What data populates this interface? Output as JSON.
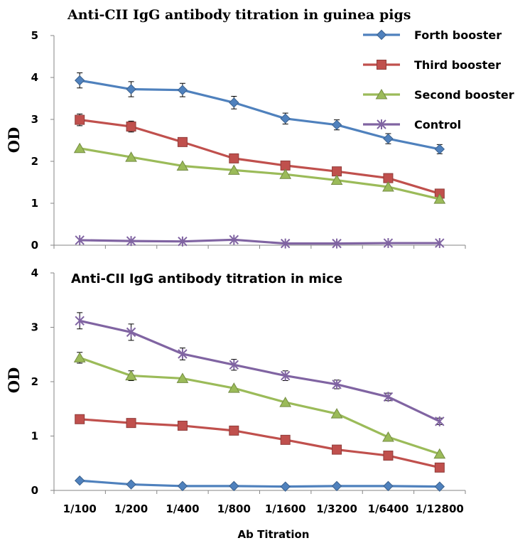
{
  "chart_data": [
    {
      "type": "line",
      "title": "Anti-CII IgG antibody titration in guinea pigs",
      "ylabel": "OD",
      "xlabel": "",
      "ylim": [
        0,
        5
      ],
      "yticks": [
        0,
        1,
        2,
        3,
        4,
        5
      ],
      "categories": [
        "1/100",
        "1/200",
        "1/400",
        "1/800",
        "1/1600",
        "1/3200",
        "1/6400",
        "1/12800"
      ],
      "legend": "top-right",
      "series": [
        {
          "name": "Forth booster",
          "color": "#4F81BD",
          "marker": "diamond",
          "values": [
            3.93,
            3.72,
            3.7,
            3.4,
            3.02,
            2.87,
            2.54,
            2.29
          ],
          "errors": [
            0.18,
            0.18,
            0.16,
            0.15,
            0.13,
            0.12,
            0.12,
            0.11
          ]
        },
        {
          "name": "Third booster",
          "color": "#C0504D",
          "marker": "square",
          "values": [
            2.99,
            2.83,
            2.46,
            2.07,
            1.9,
            1.76,
            1.6,
            1.23
          ],
          "errors": [
            0.14,
            0.13,
            0.0,
            0.0,
            0.0,
            0.0,
            0.0,
            0.0
          ]
        },
        {
          "name": "Second booster",
          "color": "#9BBB59",
          "marker": "triangle",
          "values": [
            2.31,
            2.1,
            1.89,
            1.79,
            1.69,
            1.55,
            1.39,
            1.1
          ],
          "errors": [
            0.0,
            0.0,
            0.0,
            0.0,
            0.0,
            0.0,
            0.0,
            0.0
          ]
        },
        {
          "name": "Control",
          "color": "#8064A2",
          "marker": "star",
          "values": [
            0.12,
            0.1,
            0.09,
            0.13,
            0.04,
            0.04,
            0.05,
            0.05
          ],
          "errors": [
            0.0,
            0.0,
            0.0,
            0.0,
            0.0,
            0.0,
            0.0,
            0.0
          ]
        }
      ]
    },
    {
      "type": "line",
      "title": "Anti-CII IgG antibody titration in mice",
      "ylabel": "OD",
      "xlabel": "Ab Titration",
      "ylim": [
        0,
        4
      ],
      "yticks": [
        0,
        1,
        2,
        3,
        4
      ],
      "categories": [
        "1/100",
        "1/200",
        "1/400",
        "1/800",
        "1/1600",
        "1/3200",
        "1/6400",
        "1/12800"
      ],
      "series": [
        {
          "color": "#8064A2",
          "marker": "star",
          "values": [
            3.12,
            2.91,
            2.51,
            2.31,
            2.11,
            1.95,
            1.72,
            1.27
          ],
          "errors": [
            0.15,
            0.15,
            0.11,
            0.1,
            0.09,
            0.08,
            0.07,
            0.06
          ]
        },
        {
          "color": "#9BBB59",
          "marker": "triangle",
          "values": [
            2.44,
            2.11,
            2.06,
            1.88,
            1.62,
            1.41,
            0.98,
            0.67
          ],
          "errors": [
            0.1,
            0.09,
            0.0,
            0.0,
            0.0,
            0.0,
            0.0,
            0.0
          ]
        },
        {
          "color": "#C0504D",
          "marker": "square",
          "values": [
            1.31,
            1.24,
            1.19,
            1.1,
            0.93,
            0.75,
            0.64,
            0.42
          ],
          "errors": [
            0.0,
            0.0,
            0.0,
            0.0,
            0.0,
            0.0,
            0.0,
            0.0
          ]
        },
        {
          "color": "#4F81BD",
          "marker": "diamond",
          "values": [
            0.18,
            0.11,
            0.08,
            0.08,
            0.07,
            0.08,
            0.08,
            0.07
          ],
          "errors": [
            0.0,
            0.0,
            0.0,
            0.0,
            0.0,
            0.0,
            0.0,
            0.0
          ]
        }
      ]
    }
  ]
}
